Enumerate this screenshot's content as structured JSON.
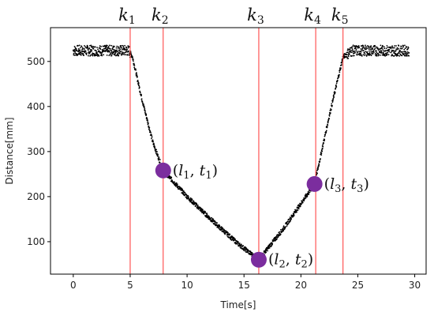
{
  "chart_data": {
    "type": "scatter",
    "xlabel": "Time[s]",
    "ylabel": "Distance[mm]",
    "xlim": [
      -2,
      31
    ],
    "ylim": [
      28,
      575
    ],
    "xticks": [
      0,
      5,
      10,
      15,
      20,
      25,
      30
    ],
    "yticks": [
      100,
      200,
      300,
      400,
      500
    ],
    "grid": false,
    "colors": {
      "points": "#000000",
      "vlines": "#ff3333",
      "markers": "#7b2d9e"
    },
    "trend": [
      {
        "t": 0.0,
        "d": 524
      },
      {
        "t": 4.9,
        "d": 524
      },
      {
        "t": 5.2,
        "d": 510
      },
      {
        "t": 6.0,
        "d": 420
      },
      {
        "t": 7.0,
        "d": 320
      },
      {
        "t": 7.9,
        "d": 258
      },
      {
        "t": 10.0,
        "d": 200
      },
      {
        "t": 12.5,
        "d": 140
      },
      {
        "t": 14.5,
        "d": 95
      },
      {
        "t": 16.3,
        "d": 60
      },
      {
        "t": 18.5,
        "d": 130
      },
      {
        "t": 21.2,
        "d": 228
      },
      {
        "t": 22.5,
        "d": 380
      },
      {
        "t": 23.7,
        "d": 510
      },
      {
        "t": 24.5,
        "d": 524
      },
      {
        "t": 29.5,
        "d": 524
      }
    ],
    "knots": [
      {
        "id": "k1",
        "base": "k",
        "sub": "1",
        "t": 5.0
      },
      {
        "id": "k2",
        "base": "k",
        "sub": "2",
        "t": 7.9
      },
      {
        "id": "k3",
        "base": "k",
        "sub": "3",
        "t": 16.3
      },
      {
        "id": "k4",
        "base": "k",
        "sub": "4",
        "t": 21.3
      },
      {
        "id": "k5",
        "base": "k",
        "sub": "5",
        "t": 23.7
      }
    ],
    "points": [
      {
        "t": 7.9,
        "d": 258,
        "label": [
          "l",
          "1",
          "t",
          "1"
        ]
      },
      {
        "t": 16.3,
        "d": 60,
        "label": [
          "l",
          "2",
          "t",
          "2"
        ]
      },
      {
        "t": 21.2,
        "d": 228,
        "label": [
          "l",
          "3",
          "t",
          "3"
        ]
      }
    ]
  }
}
